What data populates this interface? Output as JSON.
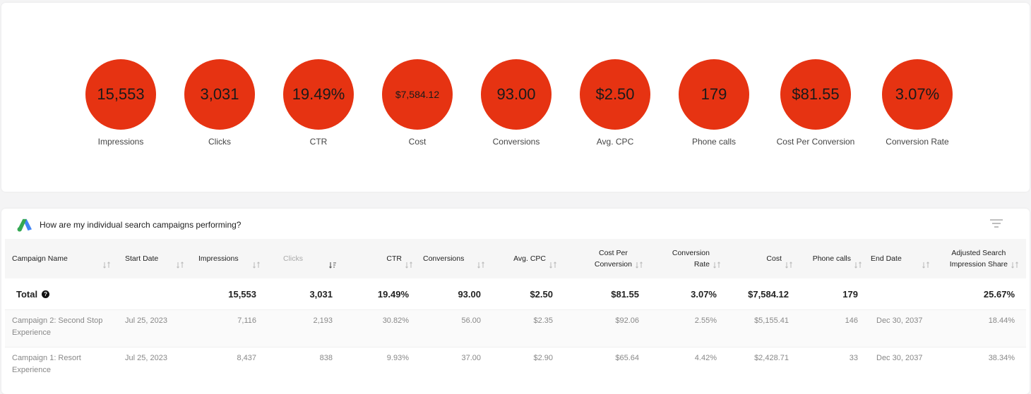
{
  "kpis": [
    {
      "value": "15,553",
      "label": "Impressions"
    },
    {
      "value": "3,031",
      "label": "Clicks"
    },
    {
      "value": "19.49%",
      "label": "CTR"
    },
    {
      "value": "$7,584.12",
      "label": "Cost"
    },
    {
      "value": "93.00",
      "label": "Conversions"
    },
    {
      "value": "$2.50",
      "label": "Avg. CPC"
    },
    {
      "value": "179",
      "label": "Phone calls"
    },
    {
      "value": "$81.55",
      "label": "Cost Per Conversion"
    },
    {
      "value": "3.07%",
      "label": "Conversion Rate"
    }
  ],
  "table": {
    "title": "How are my individual search campaigns performing?",
    "columns": [
      {
        "line1": "Campaign Name",
        "line2": ""
      },
      {
        "line1": "Start Date",
        "line2": ""
      },
      {
        "line1": "Impressions",
        "line2": ""
      },
      {
        "line1": "Clicks",
        "line2": ""
      },
      {
        "line1": "CTR",
        "line2": ""
      },
      {
        "line1": "Conversions",
        "line2": ""
      },
      {
        "line1": "Avg. CPC",
        "line2": ""
      },
      {
        "line1": "Cost Per",
        "line2": "Conversion"
      },
      {
        "line1": "Conversion",
        "line2": "Rate"
      },
      {
        "line1": "Cost",
        "line2": ""
      },
      {
        "line1": "Phone calls",
        "line2": ""
      },
      {
        "line1": "End Date",
        "line2": ""
      },
      {
        "line1": "Adjusted Search",
        "line2": "Impression Share"
      }
    ],
    "total": {
      "label": "Total",
      "info_icon": "question-circle-icon",
      "impressions": "15,553",
      "clicks": "3,031",
      "ctr": "19.49%",
      "conversions": "93.00",
      "avg_cpc": "$2.50",
      "cost_per_conversion": "$81.55",
      "conversion_rate": "3.07%",
      "cost": "$7,584.12",
      "phone_calls": "179",
      "impression_share": "25.67%"
    },
    "rows": [
      {
        "name_line1": "Campaign 2: Second Stop",
        "name_line2": "Experience",
        "start_date": "Jul 25, 2023",
        "impressions": "7,116",
        "clicks": "2,193",
        "ctr": "30.82%",
        "conversions": "56.00",
        "avg_cpc": "$2.35",
        "cost_per_conversion": "$92.06",
        "conversion_rate": "2.55%",
        "cost": "$5,155.41",
        "phone_calls": "146",
        "end_date": "Dec 30, 2037",
        "impression_share": "18.44%"
      },
      {
        "name_line1": "Campaign 1: Resort",
        "name_line2": "Experience",
        "start_date": "Jul 25, 2023",
        "impressions": "8,437",
        "clicks": "838",
        "ctr": "9.93%",
        "conversions": "37.00",
        "avg_cpc": "$2.90",
        "cost_per_conversion": "$65.64",
        "conversion_rate": "4.42%",
        "cost": "$2,428.71",
        "phone_calls": "33",
        "end_date": "Dec 30, 2037",
        "impression_share": "38.34%"
      }
    ]
  },
  "colors": {
    "kpi_circle": "#e63312",
    "logo_green": "#34a853",
    "logo_blue": "#4285f4"
  }
}
